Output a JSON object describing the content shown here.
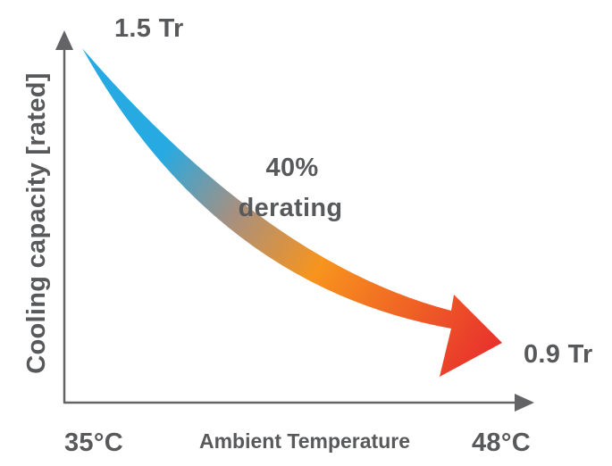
{
  "diagram": {
    "start_value": "1.5 Tr",
    "end_value": "0.9 Tr",
    "derating_percent": "40%",
    "derating_word": "derating",
    "y_axis_label": "Cooling capacity [rated]",
    "x_axis_label": "Ambient Temperature",
    "x_start": "35°C",
    "x_end": "48°C"
  },
  "colors": {
    "axis": "#646466",
    "text": "#58595b",
    "arrow_cool": "#27aae1",
    "arrow_mid": "#a59082",
    "arrow_warm": "#f7941d",
    "arrow_hot": "#e8322d"
  }
}
